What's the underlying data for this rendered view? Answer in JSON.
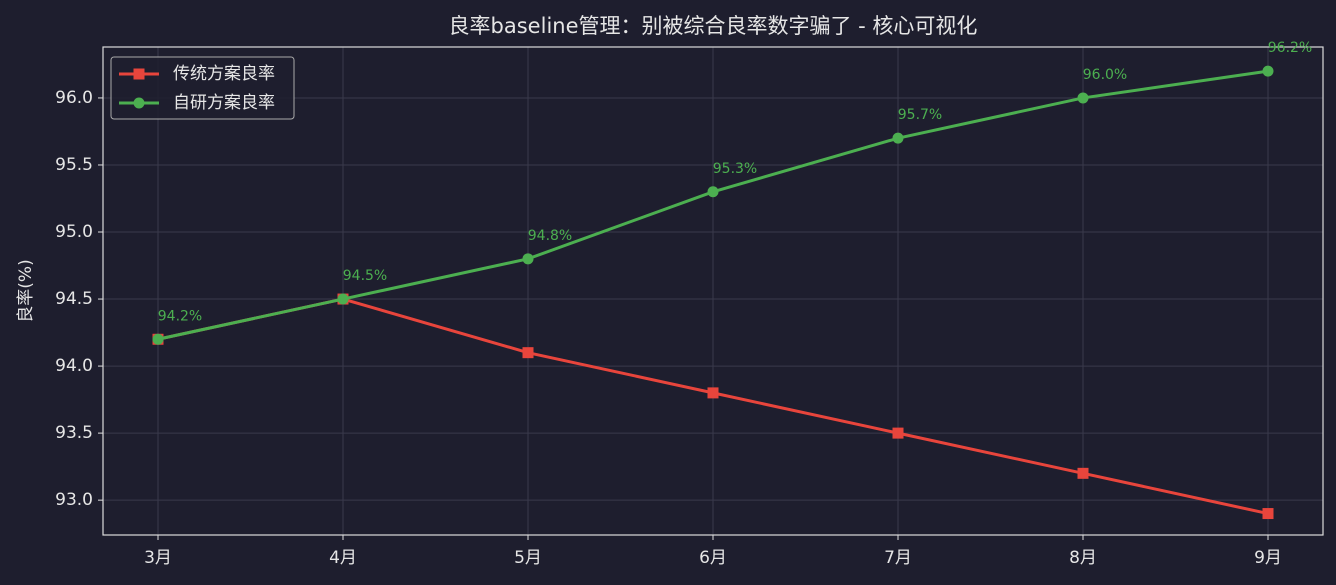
{
  "chart_data": {
    "type": "line",
    "title": "良率baseline管理：别被综合良率数字骗了 - 核心可视化",
    "y_label": "良率(%)",
    "categories": [
      "3月",
      "4月",
      "5月",
      "6月",
      "7月",
      "8月",
      "9月"
    ],
    "series": [
      {
        "name": "传统方案良率",
        "color": "#e8453c",
        "marker": "square",
        "values": [
          94.2,
          94.5,
          94.1,
          93.8,
          93.5,
          93.2,
          92.9
        ]
      },
      {
        "name": "自研方案良率",
        "color": "#4caf50",
        "marker": "circle",
        "values": [
          94.2,
          94.5,
          94.8,
          95.3,
          95.7,
          96.0,
          96.2
        ],
        "value_labels": [
          "94.2%",
          "94.5%",
          "94.8%",
          "95.3%",
          "95.7%",
          "96.0%",
          "96.2%"
        ]
      }
    ],
    "ylim": [
      92.74,
      96.38
    ],
    "yticks": [
      {
        "value": 93,
        "label": "93.0"
      },
      {
        "value": 93.5,
        "label": "93.5"
      },
      {
        "value": 94,
        "label": "94.0"
      },
      {
        "value": 94.5,
        "label": "94.5"
      },
      {
        "value": 95,
        "label": "95.0"
      },
      {
        "value": 95.5,
        "label": "95.5"
      },
      {
        "value": 96,
        "label": "96.0"
      }
    ],
    "grid": true,
    "legend": "upper-left"
  }
}
